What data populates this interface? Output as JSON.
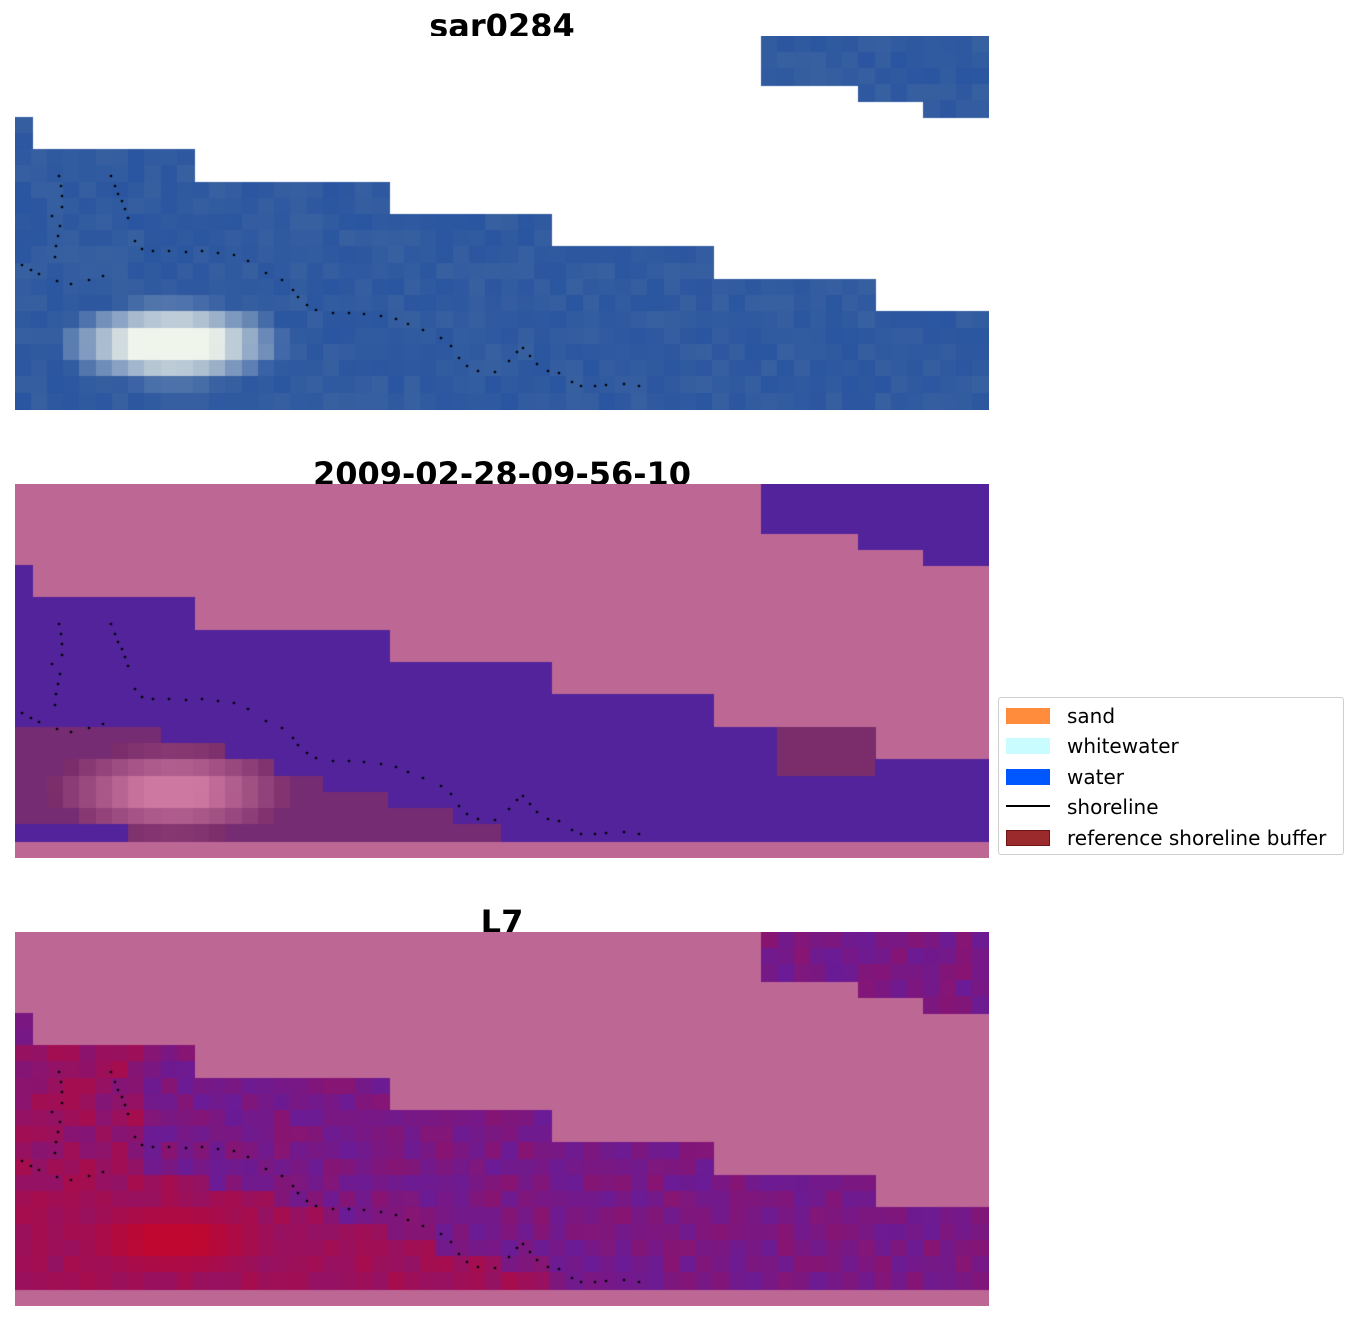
{
  "panels": [
    {
      "title": "sar0284",
      "style": "rgb"
    },
    {
      "title": "2009-02-28-09-56-10",
      "style": "classified"
    },
    {
      "title": "L7",
      "style": "index"
    }
  ],
  "legend": {
    "placement": "center-right",
    "items": [
      {
        "label": "sand",
        "kind": "patch",
        "color": "#ff8c3c"
      },
      {
        "label": "whitewater",
        "kind": "patch",
        "color": "#c8fcff"
      },
      {
        "label": "water",
        "kind": "patch",
        "color": "#0057ff"
      },
      {
        "label": "shoreline",
        "kind": "line",
        "color": "#000000"
      },
      {
        "label": "reference shoreline buffer",
        "kind": "patch",
        "color": "#9b2a2d"
      }
    ]
  },
  "colors": {
    "background_mask": "#bd6795",
    "water_class": "#52239a",
    "buffer_overlay": "#7b2d6b",
    "rgb_water": "#2a55a0",
    "index_low": "#5a1fa8",
    "index_high": "#c0072f"
  }
}
